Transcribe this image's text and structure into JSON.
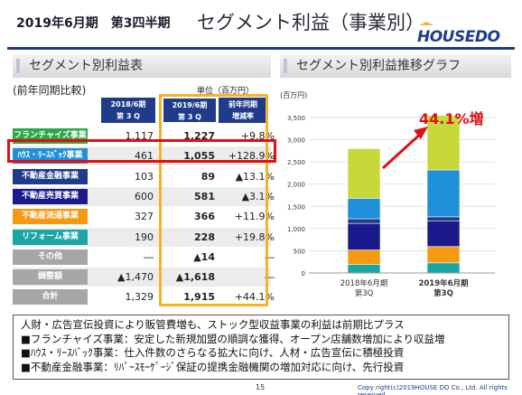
{
  "header": {
    "period": "2019年6月期　第3四半期",
    "title": "セグメント利益（事業別）",
    "logo_text": "HOUSEDO"
  },
  "table_section": {
    "title": "セグメント別利益表",
    "prev_label": "(前年同期比較)",
    "unit": "単位（百万円）",
    "columns": [
      "2018/6期\n第 3 Q",
      "2019/6期\n第 3 Q",
      "前年同期\n増減率"
    ],
    "rows": [
      {
        "label": "フランチャイズ事業",
        "color": "#2aa84a",
        "prev": "1,117",
        "curr": "1,227",
        "change": "+9.8%"
      },
      {
        "label": "ﾊｳｽ・ﾘｰｽﾊﾞｯｸ事業",
        "color": "#1e8fd8",
        "prev": "461",
        "curr": "1,055",
        "change": "+128.9%"
      },
      {
        "label": "不動産金融事業",
        "color": "#1f3b8a",
        "prev": "103",
        "curr": "89",
        "change": "▲13.1%"
      },
      {
        "label": "不動産売買事業",
        "color": "#1a1a8c",
        "prev": "600",
        "curr": "581",
        "change": "▲3.1%"
      },
      {
        "label": "不動産流通事業",
        "color": "#f59a10",
        "prev": "327",
        "curr": "366",
        "change": "+11.9%"
      },
      {
        "label": "リフォーム事業",
        "color": "#1ba6a6",
        "prev": "190",
        "curr": "228",
        "change": "+19.8%"
      },
      {
        "label": "その他",
        "color": "#a6a6a6",
        "prev": "―",
        "curr": "▲14",
        "change": "―"
      },
      {
        "label": "調整額",
        "color": "#a6a6a6",
        "prev": "▲1,470",
        "curr": "▲1,618",
        "change": "―"
      },
      {
        "label": "合計",
        "color": "#a6a6a6",
        "prev": "1,329",
        "curr": "1,915",
        "change": "+44.1%"
      }
    ]
  },
  "chart_section": {
    "title": "セグメント別利益推移グラフ",
    "increase_label": "44.1%増"
  },
  "chart_data": {
    "type": "bar",
    "stacked": true,
    "ylabel": "(百万円)",
    "ylim": [
      0,
      3500
    ],
    "yticks": [
      "0",
      "500",
      "1,000",
      "1,500",
      "2,000",
      "2,500",
      "3,000",
      "3,500"
    ],
    "categories": [
      "2018年6月期\n第3Q",
      "2019年6月期\n第3Q"
    ],
    "series": [
      {
        "color": "#a6a6a6",
        "values": [
          0,
          0
        ]
      },
      {
        "color": "#1ba6a6",
        "values": [
          190,
          228
        ]
      },
      {
        "color": "#f59a10",
        "values": [
          327,
          366
        ]
      },
      {
        "color": "#1a1a8c",
        "values": [
          600,
          581
        ]
      },
      {
        "color": "#1f3b8a",
        "values": [
          103,
          89
        ]
      },
      {
        "color": "#1e8fd8",
        "values": [
          461,
          1055
        ]
      },
      {
        "color": "#c7d83a",
        "values": [
          1117,
          1227
        ]
      }
    ],
    "grid": true,
    "legend": "none"
  },
  "note": {
    "lines": [
      "人財・広告宣伝投資により販管費増も、ストック型収益事業の利益は前期比プラス",
      "■フランチャイズ事業：安定した新規加盟の順調な獲得、オープン店舗数増加により収益増",
      "■ﾊｳｽ・ﾘｰｽﾊﾞｯｸ事業：仕入件数のさらなる拡大に向け、人材・広告宣伝に積極投資",
      "■不動産金融事業：ﾘﾊﾞｰｽﾓｰｹﾞｰｼﾞ保証の提携金融機関の増加対応に向け、先行投資"
    ]
  },
  "footer": {
    "page": "15",
    "copyright": "Copy right(c)2019HOUSE DO Co., Ltd. All rights reserved"
  }
}
